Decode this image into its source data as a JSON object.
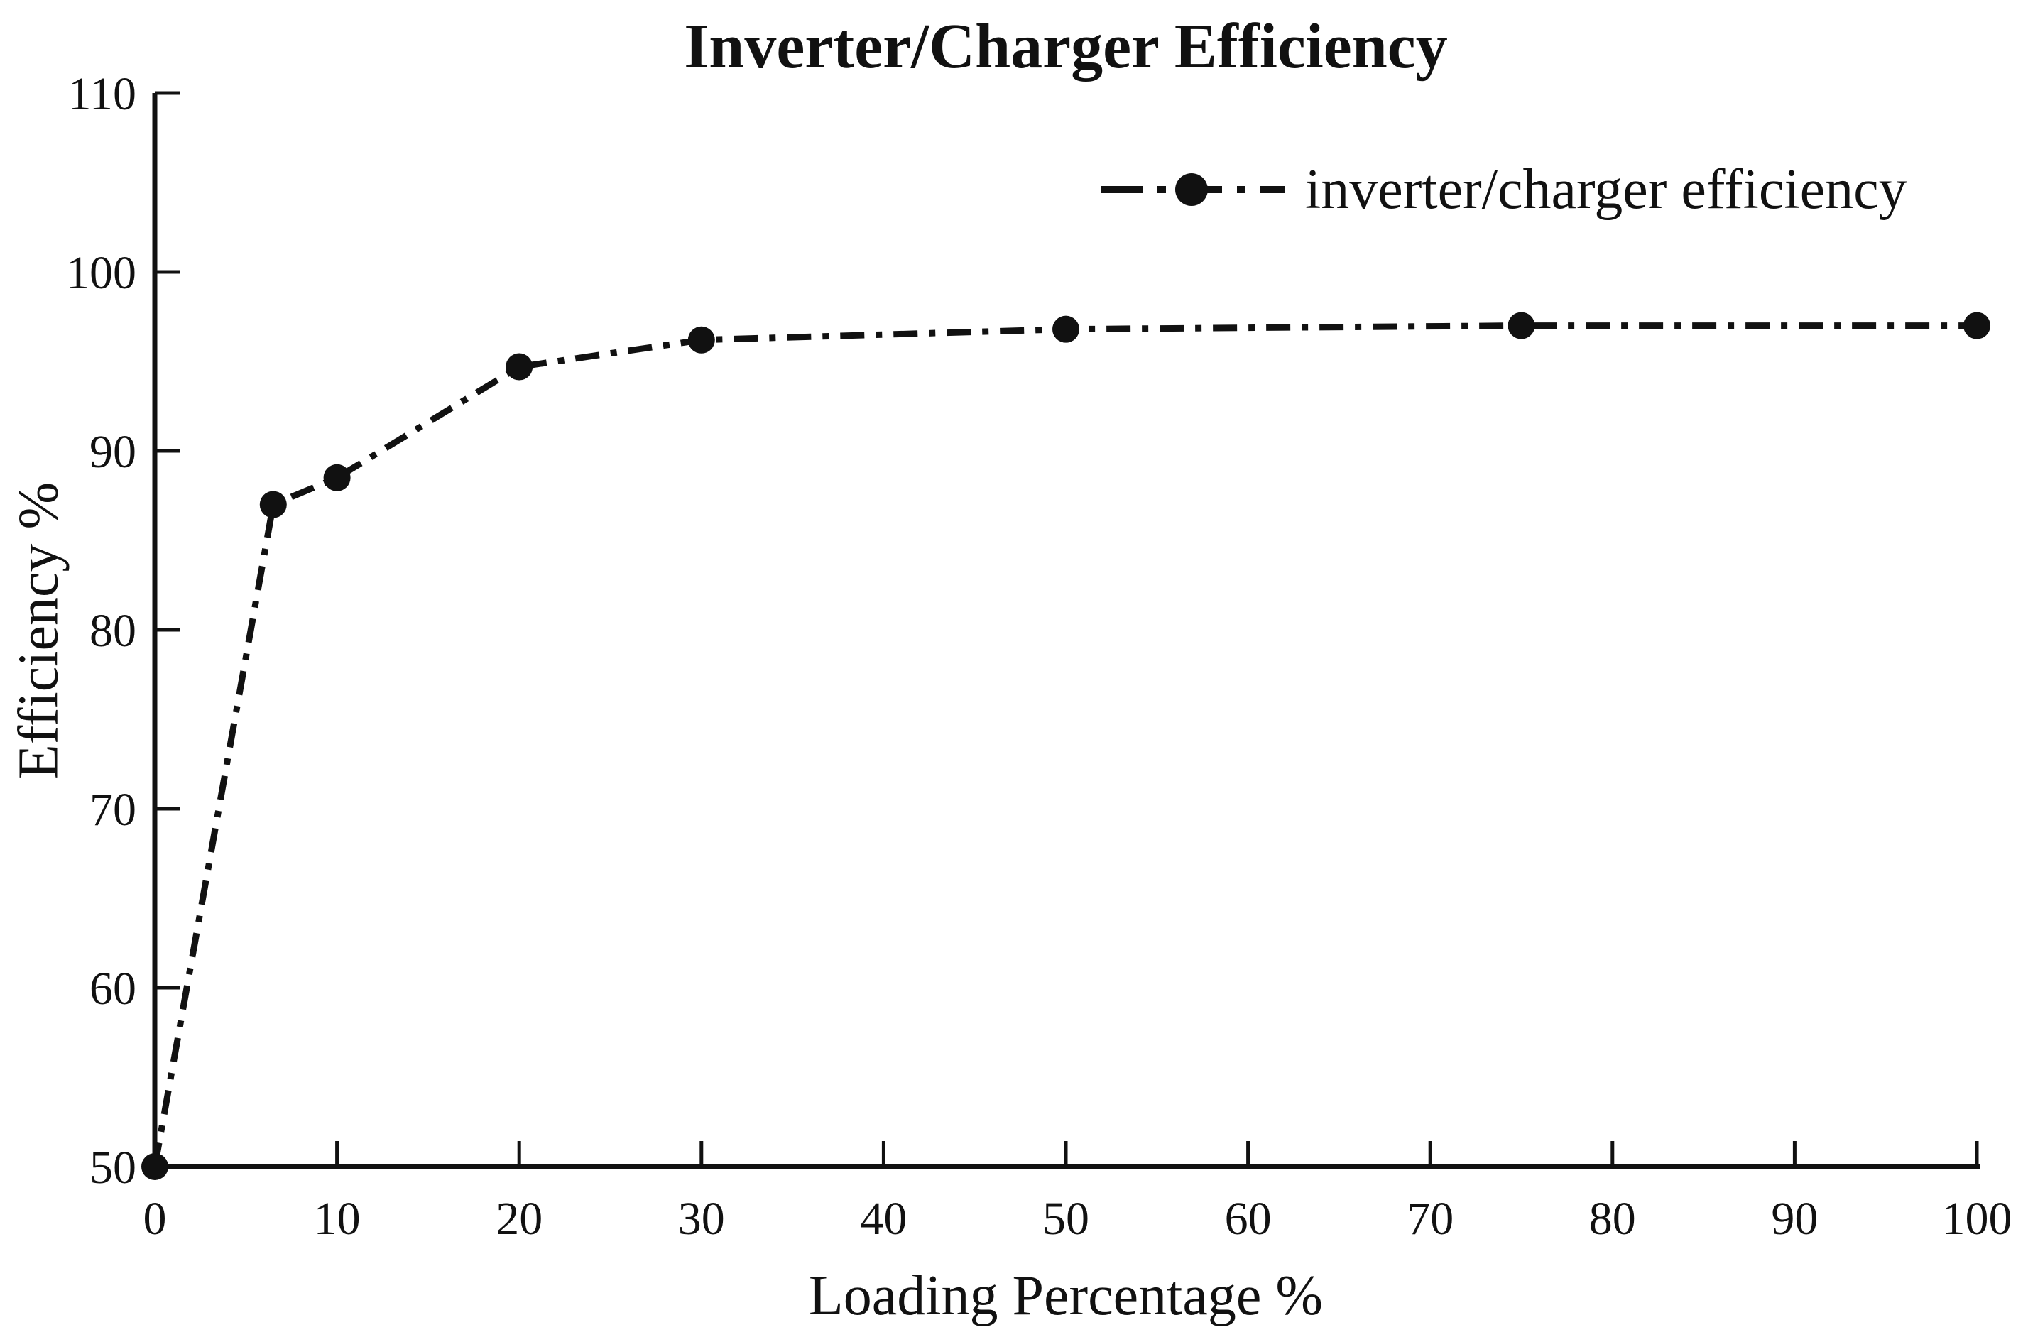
{
  "page": {
    "background": "#ffffff"
  },
  "chart_data": {
    "type": "line",
    "title": "Inverter/Charger Efficiency",
    "xlabel": "Loading Percentage %",
    "ylabel": "Efficiency %",
    "xlim": [
      0,
      100
    ],
    "ylim": [
      50,
      110
    ],
    "xticks": [
      0,
      10,
      20,
      30,
      40,
      50,
      60,
      70,
      80,
      90,
      100
    ],
    "yticks": [
      50,
      60,
      70,
      80,
      90,
      100,
      110
    ],
    "grid": false,
    "legend_position": "top-right-inside",
    "axis_color": "#111111",
    "text_color": "#111111",
    "series": [
      {
        "name": "inverter/charger efficiency",
        "x": [
          0,
          6.5,
          10,
          20,
          30,
          50,
          75,
          100
        ],
        "y": [
          50,
          87,
          88.5,
          94.7,
          96.2,
          96.8,
          97,
          97
        ],
        "line_style": "dash-dot",
        "marker": "filled-circle",
        "color": "#111111"
      }
    ]
  }
}
